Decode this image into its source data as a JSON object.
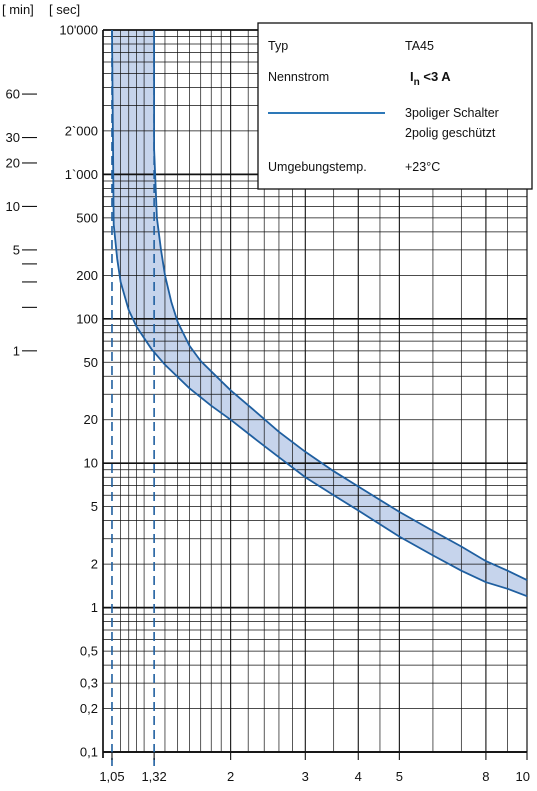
{
  "chart_data": {
    "type": "line",
    "x_scale": "log",
    "y_scale": "log",
    "xlim": [
      1,
      10
    ],
    "ylim": [
      0.1,
      10000
    ],
    "grid": true,
    "header": {
      "min_label": "[ min]",
      "sec_label": "[ sec]"
    },
    "x_ticks": [
      {
        "value": 1.05,
        "label": "1,05"
      },
      {
        "value": 1.32,
        "label": "1,32"
      },
      {
        "value": 2,
        "label": "2"
      },
      {
        "value": 3,
        "label": "3"
      },
      {
        "value": 4,
        "label": "4"
      },
      {
        "value": 5,
        "label": "5"
      },
      {
        "value": 8,
        "label": "8"
      },
      {
        "value": 10,
        "label": "10"
      }
    ],
    "y_ticks_sec": [
      {
        "value": 10000,
        "label": "10'000"
      },
      {
        "value": 2000,
        "label": "2`000"
      },
      {
        "value": 1000,
        "label": "1`000"
      },
      {
        "value": 500,
        "label": "500"
      },
      {
        "value": 200,
        "label": "200"
      },
      {
        "value": 100,
        "label": "100"
      },
      {
        "value": 50,
        "label": "50"
      },
      {
        "value": 20,
        "label": "20"
      },
      {
        "value": 10,
        "label": "10"
      },
      {
        "value": 5,
        "label": "5"
      },
      {
        "value": 2,
        "label": "2"
      },
      {
        "value": 1,
        "label": "1"
      },
      {
        "value": 0.5,
        "label": "0,5"
      },
      {
        "value": 0.3,
        "label": "0,3"
      },
      {
        "value": 0.2,
        "label": "0,2"
      },
      {
        "value": 0.1,
        "label": "0,1"
      }
    ],
    "y_ticks_min": [
      {
        "value": 60,
        "label": "60"
      },
      {
        "value": 30,
        "label": "30"
      },
      {
        "value": 20,
        "label": "20"
      },
      {
        "value": 10,
        "label": "10"
      },
      {
        "value": 5,
        "label": "5"
      },
      {
        "value": 4,
        "label": ""
      },
      {
        "value": 3,
        "label": ""
      },
      {
        "value": 2,
        "label": ""
      },
      {
        "value": 1,
        "label": "1"
      }
    ],
    "reference_lines": [
      {
        "x": 1.05,
        "style": "dashed"
      },
      {
        "x": 1.32,
        "style": "dashed"
      }
    ],
    "band": {
      "upper": {
        "x": [
          1.32,
          1.34,
          1.37,
          1.4,
          1.45,
          1.5,
          1.6,
          1.7,
          1.85,
          2,
          2.3,
          2.6,
          3,
          3.5,
          4,
          5,
          6,
          7,
          8,
          9,
          10
        ],
        "y": [
          1500,
          500,
          300,
          200,
          130,
          95,
          65,
          51,
          40,
          32,
          22.5,
          16.5,
          12,
          8.8,
          6.9,
          4.6,
          3.4,
          2.65,
          2.1,
          1.8,
          1.55
        ]
      },
      "lower": {
        "x": [
          1.05,
          1.06,
          1.08,
          1.1,
          1.15,
          1.2,
          1.3,
          1.4,
          1.6,
          1.8,
          2,
          2.3,
          2.6,
          3,
          3.5,
          4,
          5,
          6,
          7,
          8,
          9,
          10
        ],
        "y": [
          10000,
          450,
          260,
          180,
          115,
          88,
          62,
          48,
          33,
          25,
          20,
          14.5,
          11,
          8,
          6,
          4.7,
          3.1,
          2.3,
          1.8,
          1.5,
          1.35,
          1.2
        ]
      },
      "upper_top_x": 1.32,
      "lower_top_x": 1.05
    },
    "legend": {
      "placement": "top-right",
      "typ_label": "Typ",
      "typ_value": "TA45",
      "nennstrom_label": "Nennstrom",
      "nennstrom_value_prefix": "I",
      "nennstrom_value_sub": "n",
      "nennstrom_value_suffix": " <3 A",
      "series_line1": "3poliger Schalter",
      "series_line2": "2polig geschützt",
      "temp_label": "Umgebungstemp.",
      "temp_value": "+23°C"
    },
    "colors": {
      "curve": "#1f5fa0",
      "band_fill": "#c6d4ec",
      "grid": "#111111",
      "legend_line": "#2d78b8"
    }
  }
}
